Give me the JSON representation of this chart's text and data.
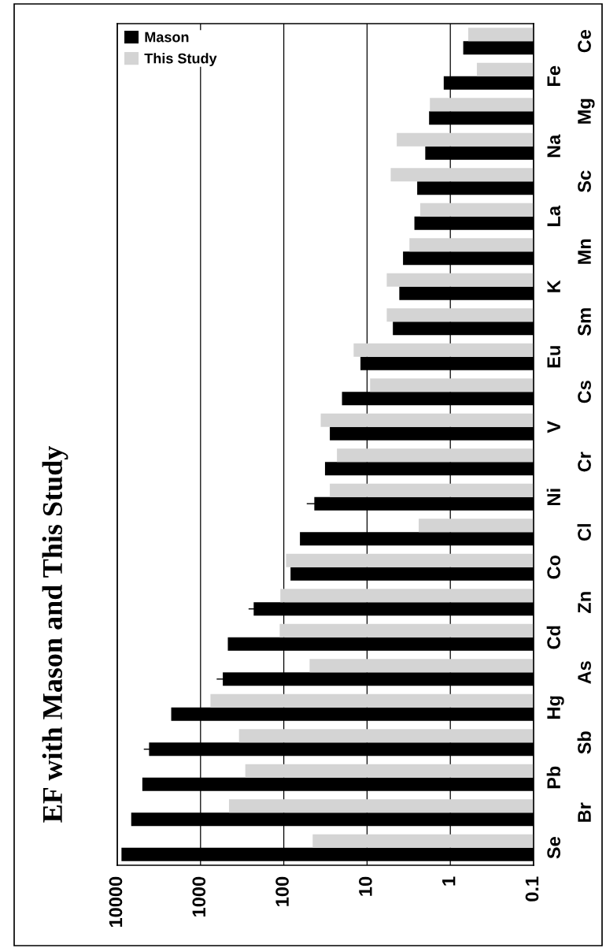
{
  "chart_data": {
    "type": "bar",
    "orientation": "horizontal",
    "title": "EF with Mason and This Study",
    "categories": [
      "Ce",
      "Fe",
      "Mg",
      "Na",
      "Sc",
      "La",
      "Mn",
      "K",
      "Sm",
      "Eu",
      "Cs",
      "V",
      "Cr",
      "Ni",
      "Cl",
      "Co",
      "Zn",
      "Cd",
      "As",
      "Hg",
      "Sb",
      "Pb",
      "Br",
      "Se"
    ],
    "series": [
      {
        "name": "Mason",
        "color": "#000000",
        "values": [
          0.7,
          1.2,
          1.8,
          2.0,
          2.5,
          2.7,
          3.7,
          4.1,
          4.9,
          12,
          20,
          28,
          32,
          43,
          64,
          83,
          230,
          470,
          540,
          2250,
          4150,
          5000,
          6800,
          8900
        ],
        "errors": [
          null,
          null,
          null,
          null,
          null,
          null,
          null,
          null,
          null,
          null,
          null,
          null,
          null,
          10,
          null,
          null,
          35,
          null,
          100,
          null,
          650,
          null,
          null,
          null
        ]
      },
      {
        "name": "This Study",
        "color": "#d4d4d4",
        "values": [
          0.61,
          0.48,
          1.76,
          4.4,
          5.2,
          2.3,
          3.1,
          5.8,
          5.8,
          14.5,
          9.2,
          36,
          23,
          28,
          2.4,
          94,
          110,
          112,
          49,
          760,
          345,
          290,
          455,
          45
        ]
      }
    ],
    "log": "x",
    "xlim": [
      10000,
      0.1
    ],
    "xticks": [
      10000,
      1000,
      100,
      10,
      1,
      0.1
    ],
    "grid": "x",
    "legend": "top left"
  }
}
